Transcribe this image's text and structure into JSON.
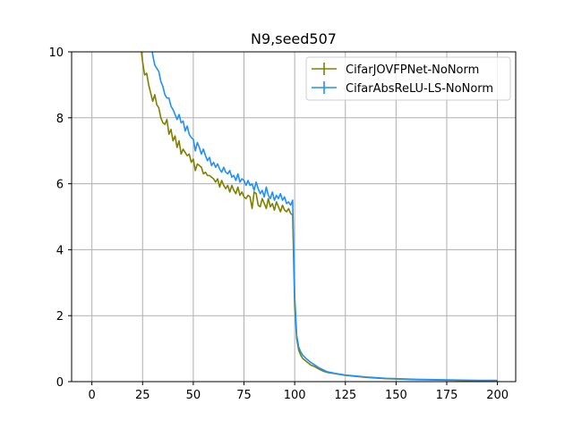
{
  "chart_data": {
    "type": "line",
    "title": "N9,seed507",
    "xlabel": "",
    "ylabel": "",
    "xlim": [
      -10,
      209
    ],
    "ylim": [
      0,
      10
    ],
    "xticks": [
      0,
      25,
      50,
      75,
      100,
      125,
      150,
      175,
      200
    ],
    "yticks": [
      0,
      2,
      4,
      6,
      8,
      10
    ],
    "grid": true,
    "legend_position": "top-right",
    "series": [
      {
        "name": "CifarJOVFPNet-NoNorm",
        "color": "#808000",
        "points": [
          [
            23,
            10.6
          ],
          [
            24,
            10.2
          ],
          [
            25,
            9.7
          ],
          [
            26,
            9.3
          ],
          [
            27,
            9.35
          ],
          [
            28,
            9.0
          ],
          [
            29,
            8.75
          ],
          [
            30,
            8.5
          ],
          [
            31,
            8.7
          ],
          [
            32,
            8.4
          ],
          [
            33,
            8.3
          ],
          [
            34,
            8.0
          ],
          [
            35,
            7.85
          ],
          [
            36,
            7.8
          ],
          [
            37,
            7.95
          ],
          [
            38,
            7.5
          ],
          [
            39,
            7.65
          ],
          [
            40,
            7.3
          ],
          [
            41,
            7.45
          ],
          [
            42,
            7.1
          ],
          [
            43,
            7.3
          ],
          [
            44,
            6.9
          ],
          [
            45,
            7.05
          ],
          [
            46,
            6.95
          ],
          [
            47,
            6.85
          ],
          [
            48,
            6.9
          ],
          [
            49,
            6.65
          ],
          [
            50,
            6.75
          ],
          [
            51,
            6.4
          ],
          [
            52,
            6.6
          ],
          [
            53,
            6.55
          ],
          [
            54,
            6.5
          ],
          [
            55,
            6.3
          ],
          [
            56,
            6.35
          ],
          [
            57,
            6.25
          ],
          [
            58,
            6.25
          ],
          [
            59,
            6.2
          ],
          [
            60,
            6.15
          ],
          [
            61,
            6.05
          ],
          [
            62,
            6.15
          ],
          [
            63,
            5.9
          ],
          [
            64,
            6.1
          ],
          [
            65,
            5.95
          ],
          [
            66,
            5.85
          ],
          [
            67,
            5.95
          ],
          [
            68,
            5.75
          ],
          [
            69,
            5.95
          ],
          [
            70,
            5.8
          ],
          [
            71,
            5.7
          ],
          [
            72,
            5.9
          ],
          [
            73,
            5.65
          ],
          [
            74,
            5.75
          ],
          [
            75,
            5.6
          ],
          [
            76,
            5.55
          ],
          [
            77,
            5.65
          ],
          [
            78,
            5.6
          ],
          [
            79,
            5.25
          ],
          [
            80,
            5.75
          ],
          [
            81,
            5.7
          ],
          [
            82,
            5.35
          ],
          [
            83,
            5.3
          ],
          [
            84,
            5.55
          ],
          [
            85,
            5.4
          ],
          [
            86,
            5.25
          ],
          [
            87,
            5.55
          ],
          [
            88,
            5.3
          ],
          [
            89,
            5.4
          ],
          [
            90,
            5.2
          ],
          [
            91,
            5.45
          ],
          [
            92,
            5.3
          ],
          [
            93,
            5.15
          ],
          [
            94,
            5.35
          ],
          [
            95,
            5.2
          ],
          [
            96,
            5.15
          ],
          [
            97,
            5.25
          ],
          [
            98,
            5.1
          ],
          [
            99,
            5.05
          ],
          [
            100,
            2.3
          ],
          [
            101,
            1.3
          ],
          [
            102,
            0.95
          ],
          [
            103,
            0.8
          ],
          [
            104,
            0.7
          ],
          [
            106,
            0.6
          ],
          [
            108,
            0.5
          ],
          [
            110,
            0.45
          ],
          [
            112,
            0.38
          ],
          [
            114,
            0.32
          ],
          [
            116,
            0.28
          ],
          [
            120,
            0.24
          ],
          [
            125,
            0.19
          ],
          [
            130,
            0.16
          ],
          [
            135,
            0.13
          ],
          [
            140,
            0.11
          ],
          [
            145,
            0.09
          ],
          [
            150,
            0.08
          ],
          [
            160,
            0.06
          ],
          [
            170,
            0.05
          ],
          [
            180,
            0.04
          ],
          [
            190,
            0.03
          ],
          [
            200,
            0.03
          ]
        ]
      },
      {
        "name": "CifarAbsReLU-LS-NoNorm",
        "color": "#1e90ff",
        "points": [
          [
            28,
            10.6
          ],
          [
            29,
            10.3
          ],
          [
            30,
            9.9
          ],
          [
            31,
            9.6
          ],
          [
            32,
            9.5
          ],
          [
            33,
            9.4
          ],
          [
            34,
            9.1
          ],
          [
            35,
            8.95
          ],
          [
            36,
            8.7
          ],
          [
            37,
            8.6
          ],
          [
            38,
            8.6
          ],
          [
            39,
            8.35
          ],
          [
            40,
            8.25
          ],
          [
            41,
            8.1
          ],
          [
            42,
            7.95
          ],
          [
            43,
            8.1
          ],
          [
            44,
            7.85
          ],
          [
            45,
            7.9
          ],
          [
            46,
            7.6
          ],
          [
            47,
            7.75
          ],
          [
            48,
            7.5
          ],
          [
            49,
            7.4
          ],
          [
            50,
            7.35
          ],
          [
            51,
            7.0
          ],
          [
            52,
            7.25
          ],
          [
            53,
            7.1
          ],
          [
            54,
            6.9
          ],
          [
            55,
            7.05
          ],
          [
            56,
            6.85
          ],
          [
            57,
            6.7
          ],
          [
            58,
            6.8
          ],
          [
            59,
            6.55
          ],
          [
            60,
            6.65
          ],
          [
            61,
            6.5
          ],
          [
            62,
            6.6
          ],
          [
            63,
            6.45
          ],
          [
            64,
            6.35
          ],
          [
            65,
            6.5
          ],
          [
            66,
            6.35
          ],
          [
            67,
            6.3
          ],
          [
            68,
            6.4
          ],
          [
            69,
            6.2
          ],
          [
            70,
            6.25
          ],
          [
            71,
            6.1
          ],
          [
            72,
            6.3
          ],
          [
            73,
            6.05
          ],
          [
            74,
            6.15
          ],
          [
            75,
            6.1
          ],
          [
            76,
            5.95
          ],
          [
            77,
            6.1
          ],
          [
            78,
            5.95
          ],
          [
            79,
            6.0
          ],
          [
            80,
            5.8
          ],
          [
            81,
            6.05
          ],
          [
            82,
            5.85
          ],
          [
            83,
            5.7
          ],
          [
            84,
            5.8
          ],
          [
            85,
            5.6
          ],
          [
            86,
            5.9
          ],
          [
            87,
            5.65
          ],
          [
            88,
            5.55
          ],
          [
            89,
            5.75
          ],
          [
            90,
            5.5
          ],
          [
            91,
            5.65
          ],
          [
            92,
            5.55
          ],
          [
            93,
            5.7
          ],
          [
            94,
            5.5
          ],
          [
            95,
            5.6
          ],
          [
            96,
            5.4
          ],
          [
            97,
            5.45
          ],
          [
            98,
            5.35
          ],
          [
            99,
            5.5
          ],
          [
            100,
            2.6
          ],
          [
            101,
            1.4
          ],
          [
            102,
            1.05
          ],
          [
            103,
            0.9
          ],
          [
            104,
            0.8
          ],
          [
            106,
            0.68
          ],
          [
            108,
            0.58
          ],
          [
            110,
            0.5
          ],
          [
            112,
            0.42
          ],
          [
            114,
            0.36
          ],
          [
            116,
            0.3
          ],
          [
            120,
            0.25
          ],
          [
            125,
            0.2
          ],
          [
            130,
            0.17
          ],
          [
            135,
            0.14
          ],
          [
            140,
            0.12
          ],
          [
            145,
            0.1
          ],
          [
            150,
            0.09
          ],
          [
            160,
            0.07
          ],
          [
            170,
            0.06
          ],
          [
            180,
            0.05
          ],
          [
            190,
            0.04
          ],
          [
            200,
            0.04
          ]
        ]
      }
    ]
  }
}
